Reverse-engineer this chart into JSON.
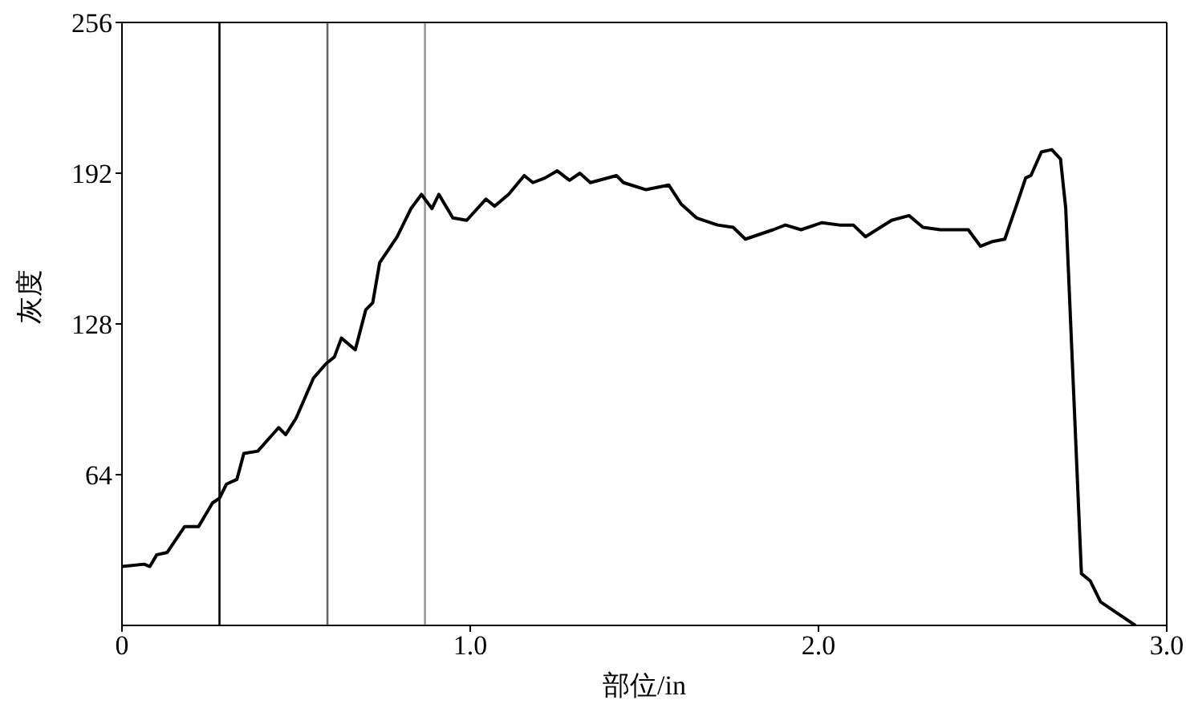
{
  "chart_data": {
    "type": "line",
    "xlabel": "部位/in",
    "ylabel": "灰度",
    "xlim": [
      0,
      3.0
    ],
    "ylim": [
      0,
      256
    ],
    "xticks": [
      0,
      {
        "value": 1,
        "label": "1.0"
      },
      {
        "value": 2,
        "label": "2.0"
      },
      {
        "value": 3,
        "label": "3.0"
      }
    ],
    "yticks": [
      64,
      128,
      192,
      256
    ],
    "grid": false,
    "legend": false,
    "marker": "none",
    "line_style": "solid",
    "ref_lines": [
      {
        "axis": "x",
        "value": 0.28,
        "color": "#000000"
      },
      {
        "axis": "x",
        "value": 0.59,
        "color": "#666666"
      },
      {
        "axis": "x",
        "value": 0.87,
        "color": "#999999"
      }
    ],
    "series": [
      {
        "color": "#000000",
        "x": [
          0,
          0.064,
          0.08,
          0.1,
          0.13,
          0.18,
          0.22,
          0.26,
          0.28,
          0.3,
          0.33,
          0.35,
          0.39,
          0.45,
          0.47,
          0.5,
          0.55,
          0.585,
          0.61,
          0.63,
          0.67,
          0.7,
          0.72,
          0.74,
          0.79,
          0.83,
          0.86,
          0.89,
          0.91,
          0.95,
          0.99,
          1.045,
          1.07,
          1.11,
          1.155,
          1.18,
          1.215,
          1.25,
          1.285,
          1.315,
          1.345,
          1.42,
          1.44,
          1.505,
          1.57,
          1.605,
          1.65,
          1.71,
          1.755,
          1.79,
          1.87,
          1.905,
          1.95,
          2.01,
          2.06,
          2.1,
          2.135,
          2.21,
          2.26,
          2.3,
          2.35,
          2.43,
          2.465,
          2.5,
          2.535,
          2.57,
          2.595,
          2.61,
          2.64,
          2.67,
          2.695,
          2.71,
          2.755,
          2.78,
          2.81,
          2.86,
          2.91
        ],
        "values": [
          25,
          26,
          25,
          30,
          31,
          42,
          42,
          52,
          54,
          60,
          62,
          73,
          74,
          84,
          81,
          88,
          105,
          111,
          114,
          122,
          117,
          134,
          137,
          154,
          165,
          177,
          183,
          177,
          183,
          173,
          172,
          181,
          178,
          183,
          191,
          188,
          190,
          193,
          189,
          192,
          188,
          191,
          188,
          185,
          187,
          179,
          173,
          170,
          169,
          164,
          168,
          170,
          168,
          171,
          170,
          170,
          165,
          172,
          174,
          169,
          168,
          168,
          161,
          163,
          164,
          179,
          190,
          191,
          201,
          202,
          198,
          177,
          22,
          19,
          10,
          5,
          0
        ]
      }
    ]
  }
}
